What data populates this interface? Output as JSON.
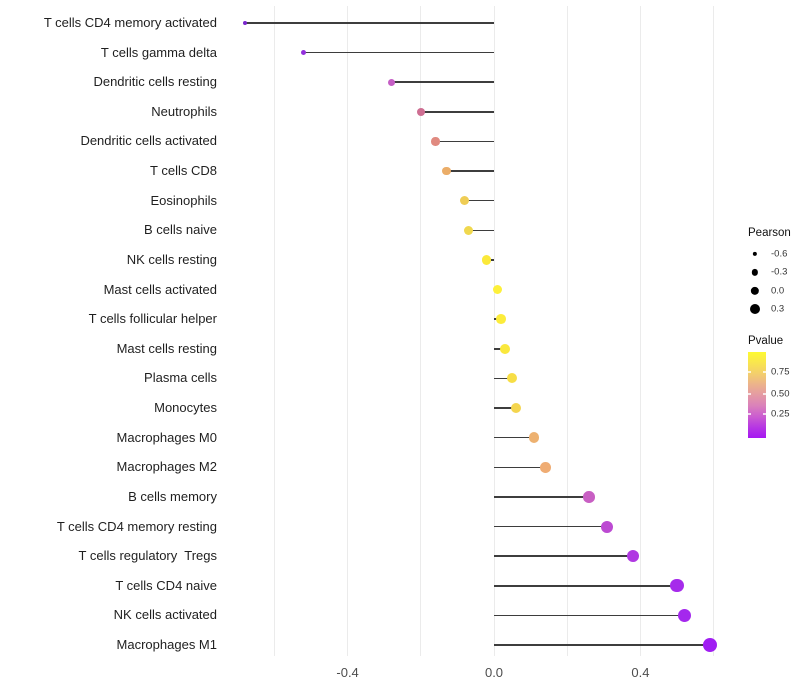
{
  "chart_data": {
    "type": "lollipop",
    "title": "",
    "xlabel": "",
    "ylabel": "",
    "xlim": [
      -0.74,
      0.65
    ],
    "grid": "vertical-only",
    "zero_baseline": true,
    "x_gridline_values": [
      -0.6,
      -0.4,
      -0.2,
      0.0,
      0.2,
      0.4,
      0.6
    ],
    "x_tick_labels": [
      {
        "value": -0.4,
        "label": "-0.4"
      },
      {
        "value": 0.0,
        "label": "0.0"
      },
      {
        "value": 0.4,
        "label": "0.4"
      }
    ],
    "rows": [
      {
        "label": "T cells CD4 memory activated",
        "pearson": -0.68,
        "color": "#7A26CC"
      },
      {
        "label": "T cells gamma delta",
        "pearson": -0.52,
        "color": "#9330DC"
      },
      {
        "label": "Dendritic cells resting",
        "pearson": -0.28,
        "color": "#C55EC5"
      },
      {
        "label": "Neutrophils",
        "pearson": -0.2,
        "color": "#CE6E92"
      },
      {
        "label": "Dendritic cells activated",
        "pearson": -0.16,
        "color": "#E08A80"
      },
      {
        "label": "T cells CD8",
        "pearson": -0.13,
        "color": "#EBAD68"
      },
      {
        "label": "Eosinophils",
        "pearson": -0.08,
        "color": "#EFCD55"
      },
      {
        "label": "B cells naive",
        "pearson": -0.07,
        "color": "#F0D84E"
      },
      {
        "label": "NK cells resting",
        "pearson": -0.02,
        "color": "#FBE93A"
      },
      {
        "label": "Mast cells activated",
        "pearson": 0.01,
        "color": "#FDF03A"
      },
      {
        "label": "T cells follicular helper",
        "pearson": 0.02,
        "color": "#FCEC3B"
      },
      {
        "label": "Mast cells resting",
        "pearson": 0.03,
        "color": "#FAE83D"
      },
      {
        "label": "Plasma cells",
        "pearson": 0.05,
        "color": "#F7DE46"
      },
      {
        "label": "Monocytes",
        "pearson": 0.06,
        "color": "#F4D54E"
      },
      {
        "label": "Macrophages M0",
        "pearson": 0.11,
        "color": "#EDB170"
      },
      {
        "label": "Macrophages M2",
        "pearson": 0.14,
        "color": "#EFAC73"
      },
      {
        "label": "B cells memory",
        "pearson": 0.26,
        "color": "#C85FC3"
      },
      {
        "label": "T cells CD4 memory resting",
        "pearson": 0.31,
        "color": "#BC4AD2"
      },
      {
        "label": "T cells regulatory  Tregs",
        "pearson": 0.38,
        "color": "#B038E2"
      },
      {
        "label": "T cells CD4 naive",
        "pearson": 0.5,
        "color": "#A62BEB"
      },
      {
        "label": "NK cells activated",
        "pearson": 0.52,
        "color": "#A428ED"
      },
      {
        "label": "Macrophages M1",
        "pearson": 0.59,
        "color": "#A01EF2"
      }
    ],
    "legend_size": {
      "title": "Pearson",
      "entries": [
        {
          "label": "-0.6",
          "diameter": 4.3
        },
        {
          "label": "-0.3",
          "diameter": 6.3
        },
        {
          "label": "0.0",
          "diameter": 8.3
        },
        {
          "label": "0.3",
          "diameter": 10.0
        }
      ]
    },
    "legend_color": {
      "title": "Pvalue",
      "tick_labels": [
        {
          "label": "0.75",
          "pos_pct": 23
        },
        {
          "label": "0.50",
          "pos_pct": 49
        },
        {
          "label": "0.25",
          "pos_pct": 72
        }
      ],
      "gradient_bottom_to_top": [
        "#A617F2",
        "#B637E3",
        "#CB5DD0",
        "#DA81BA",
        "#E49AA4",
        "#ECB38B",
        "#F3CF6C",
        "#F9E54F",
        "#FDFA32"
      ]
    },
    "colors": {
      "stick": "#3d3d3d",
      "gridline": "#ebebeb",
      "axis_text": "#4d4d4d",
      "category_text": "#1f1f1f"
    }
  }
}
